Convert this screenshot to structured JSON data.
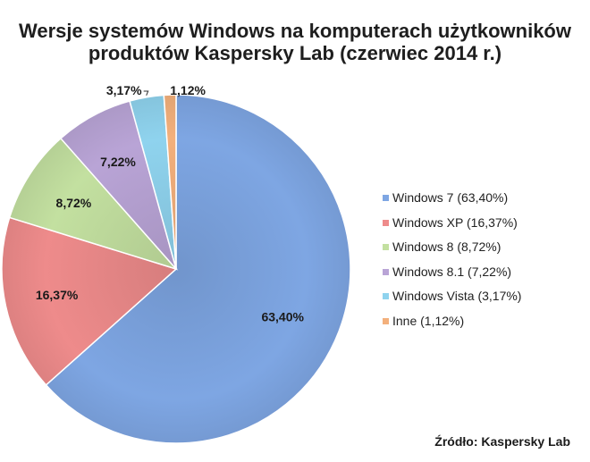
{
  "chart_data": {
    "type": "pie",
    "title_line1": "Wersje systemów Windows na komputerach użytkowników",
    "title_line2": "produktów Kaspersky Lab (czerwiec 2014 r.)",
    "categories": [
      "Windows 7",
      "Windows XP",
      "Windows 8",
      "Windows 8.1",
      "Windows Vista",
      "Inne"
    ],
    "values": [
      63.4,
      16.37,
      8.72,
      7.22,
      3.17,
      1.12
    ],
    "data_labels": [
      "63,40%",
      "16,37%",
      "8,72%",
      "7,22%",
      "3,17%",
      "1,12%"
    ],
    "legend_labels": [
      "Windows 7 (63,40%)",
      "Windows XP (16,37%)",
      "Windows 8 (8,72%)",
      "Windows 8.1 (7,22%)",
      "Windows Vista (3,17%)",
      "Inne (1,12%)"
    ],
    "colors": [
      "#7ea6e3",
      "#ee8b8b",
      "#c3e0a0",
      "#b9a4d6",
      "#8fd3ee",
      "#f3b07c"
    ],
    "legend_position": "right"
  },
  "source": "Źródło: Kaspersky Lab"
}
